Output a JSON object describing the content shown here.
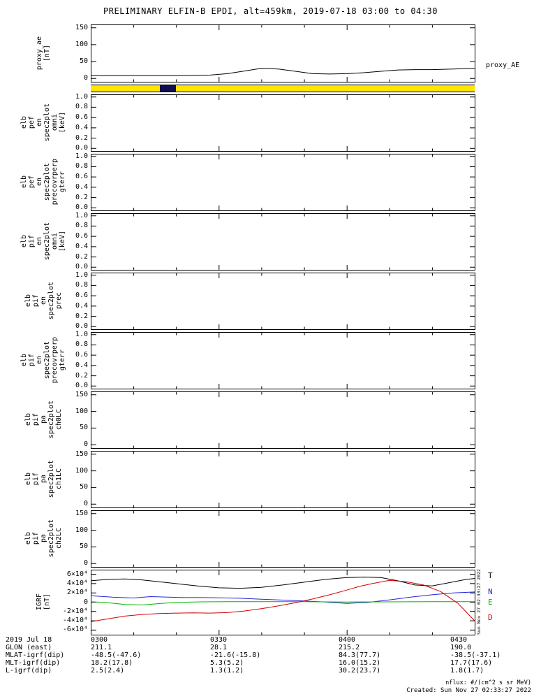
{
  "title": "PRELIMINARY ELFIN-B EPDI, alt=459km, 2019-07-18 03:00 to 04:30",
  "right_labels": {
    "proxy_ae": "proxy_AE"
  },
  "footer": {
    "nflux": "nflux: #/(cm^2 s sr MeV)",
    "created": "Created: Sun Nov 27 02:33:27 2022",
    "side_timestamp": "Sun Nov 27 02:33:27 2022"
  },
  "bottom_table": {
    "rows": [
      {
        "label": "2019 Jul 18",
        "values": [
          "0300",
          "0330",
          "0400",
          "0430"
        ]
      },
      {
        "label": "GLON (east)",
        "values": [
          "211.1",
          "28.1",
          "215.2",
          "190.0"
        ]
      },
      {
        "label": "MLAT-igrf(dip)",
        "values": [
          "-48.5(-47.6)",
          "-21.6(-15.8)",
          "84.3(77.7)",
          "-38.5(-37.1)"
        ]
      },
      {
        "label": "MLT-igrf(dip)",
        "values": [
          "18.2(17.8)",
          "5.3(5.2)",
          "16.0(15.2)",
          "17.7(17.6)"
        ]
      },
      {
        "label": "L-igrf(dip)",
        "values": [
          "2.5(2.4)",
          "1.3(1.2)",
          "30.2(23.7)",
          "1.8(1.7)"
        ]
      }
    ]
  },
  "chart_data": {
    "type": "line",
    "title": "PRELIMINARY ELFIN-B EPDI, alt=459km, 2019-07-18 03:00 to 04:30",
    "x_axis": {
      "start_time": "2019-07-18 03:00",
      "range_minutes": [
        0,
        90
      ],
      "tick_minutes": [
        0,
        30,
        60,
        90
      ],
      "minor_step_minutes": 10,
      "tick_labels": [
        "0300",
        "0330",
        "0400",
        "0430"
      ]
    },
    "status_bar": {
      "color": "#ffe600",
      "segment_color": "#10104e",
      "segment_start_frac": 0.18,
      "segment_end_frac": 0.222
    },
    "legend": [
      {
        "label": "T",
        "color": "#000000"
      },
      {
        "label": "N",
        "color": "#2424d8"
      },
      {
        "label": "E",
        "color": "#00b200"
      },
      {
        "label": "D",
        "color": "#d40000"
      }
    ],
    "panels": [
      {
        "id": "proxy_ae",
        "label_words": [
          "proxy_ae",
          "[nT]"
        ],
        "ylim": [
          -10,
          160
        ],
        "yticks": [
          {
            "v": 0,
            "label": "0"
          },
          {
            "v": 50,
            "label": "50"
          },
          {
            "v": 100,
            "label": "100"
          },
          {
            "v": 150,
            "label": "150"
          }
        ],
        "series": [
          {
            "name": "proxy_AE",
            "color": "#000000",
            "x": [
              0,
              5,
              10,
              15,
              20,
              25,
              28,
              32,
              36,
              40,
              44,
              48,
              52,
              56,
              60,
              64,
              68,
              72,
              76,
              80,
              85,
              90
            ],
            "y": [
              8,
              8,
              8,
              8,
              8,
              9,
              10,
              14,
              22,
              30,
              28,
              21,
              14,
              13,
              14,
              17,
              21,
              25,
              26,
              26,
              28,
              30
            ]
          }
        ]
      },
      {
        "id": "elb_pef_en_spec2plot_omni",
        "label_words": [
          "elb",
          "pef",
          "en",
          "spec2plot",
          "omni",
          "[keV]"
        ],
        "ylim": [
          -0.05,
          1.05
        ],
        "yticks": [
          {
            "v": 0,
            "label": "0.0"
          },
          {
            "v": 0.2,
            "label": "0.2"
          },
          {
            "v": 0.4,
            "label": "0.4"
          },
          {
            "v": 0.6,
            "label": "0.6"
          },
          {
            "v": 0.8,
            "label": "0.8"
          },
          {
            "v": 1,
            "label": "1.0"
          }
        ],
        "series": []
      },
      {
        "id": "elb_pef_en_spec2plot_precovrperp_gterr",
        "label_words": [
          "elb",
          "pef",
          "en",
          "spec2plot",
          "precovrperp",
          "gterr"
        ],
        "ylim": [
          -0.05,
          1.05
        ],
        "yticks": [
          {
            "v": 0,
            "label": "0.0"
          },
          {
            "v": 0.2,
            "label": "0.2"
          },
          {
            "v": 0.4,
            "label": "0.4"
          },
          {
            "v": 0.6,
            "label": "0.6"
          },
          {
            "v": 0.8,
            "label": "0.8"
          },
          {
            "v": 1,
            "label": "1.0"
          }
        ],
        "series": []
      },
      {
        "id": "elb_pif_en_spec2plot_omni",
        "label_words": [
          "elb",
          "pif",
          "en",
          "spec2plot",
          "omni",
          "[keV]"
        ],
        "ylim": [
          -0.05,
          1.05
        ],
        "yticks": [
          {
            "v": 0,
            "label": "0.0"
          },
          {
            "v": 0.2,
            "label": "0.2"
          },
          {
            "v": 0.4,
            "label": "0.4"
          },
          {
            "v": 0.6,
            "label": "0.6"
          },
          {
            "v": 0.8,
            "label": "0.8"
          },
          {
            "v": 1,
            "label": "1.0"
          }
        ],
        "series": []
      },
      {
        "id": "elb_pif_en_spec2plot_prec",
        "label_words": [
          "elb",
          "pif",
          "en",
          "spec2plot",
          "prec"
        ],
        "ylim": [
          -0.05,
          1.05
        ],
        "yticks": [
          {
            "v": 0,
            "label": "0.0"
          },
          {
            "v": 0.2,
            "label": "0.2"
          },
          {
            "v": 0.4,
            "label": "0.4"
          },
          {
            "v": 0.6,
            "label": "0.6"
          },
          {
            "v": 0.8,
            "label": "0.8"
          },
          {
            "v": 1,
            "label": "1.0"
          }
        ],
        "series": []
      },
      {
        "id": "elb_pif_en_spec2plot_precovrperp_gterr",
        "label_words": [
          "elb",
          "pif",
          "en",
          "spec2plot",
          "precovrperp",
          "gterr"
        ],
        "ylim": [
          -0.05,
          1.05
        ],
        "yticks": [
          {
            "v": 0,
            "label": "0.0"
          },
          {
            "v": 0.2,
            "label": "0.2"
          },
          {
            "v": 0.4,
            "label": "0.4"
          },
          {
            "v": 0.6,
            "label": "0.6"
          },
          {
            "v": 0.8,
            "label": "0.8"
          },
          {
            "v": 1,
            "label": "1.0"
          }
        ],
        "series": []
      },
      {
        "id": "elb_pif_pa_spec2plot_ch0LC",
        "label_words": [
          "elb",
          "pif",
          "pa",
          "spec2plot",
          "ch0LC"
        ],
        "ylim": [
          -10,
          160
        ],
        "yticks": [
          {
            "v": 0,
            "label": "0"
          },
          {
            "v": 50,
            "label": "50"
          },
          {
            "v": 100,
            "label": "100"
          },
          {
            "v": 150,
            "label": "150"
          }
        ],
        "series": []
      },
      {
        "id": "elb_pif_pa_spec2plot_ch1LC",
        "label_words": [
          "elb",
          "pif",
          "pa",
          "spec2plot",
          "ch1LC"
        ],
        "ylim": [
          -10,
          160
        ],
        "yticks": [
          {
            "v": 0,
            "label": "0"
          },
          {
            "v": 50,
            "label": "50"
          },
          {
            "v": 100,
            "label": "100"
          },
          {
            "v": 150,
            "label": "150"
          }
        ],
        "series": []
      },
      {
        "id": "elb_pif_pa_spec2plot_ch2LC",
        "label_words": [
          "elb",
          "pif",
          "pa",
          "spec2plot",
          "ch2LC"
        ],
        "ylim": [
          -10,
          160
        ],
        "yticks": [
          {
            "v": 0,
            "label": "0"
          },
          {
            "v": 50,
            "label": "50"
          },
          {
            "v": 100,
            "label": "100"
          },
          {
            "v": 150,
            "label": "150"
          }
        ],
        "series": []
      },
      {
        "id": "igrf",
        "label_words": [
          "IGRF",
          "[nT]"
        ],
        "ylim": [
          -70000,
          70000
        ],
        "yticks": [
          {
            "v": -60000,
            "label": "-6×10⁴"
          },
          {
            "v": -40000,
            "label": "-4×10⁴"
          },
          {
            "v": -20000,
            "label": "-2×10⁴"
          },
          {
            "v": 0,
            "label": "0"
          },
          {
            "v": 20000,
            "label": "2×10⁴"
          },
          {
            "v": 40000,
            "label": "4×10⁴"
          },
          {
            "v": 60000,
            "label": "6×10⁴"
          }
        ],
        "series": [
          {
            "name": "T",
            "color": "#000000",
            "x": [
              0,
              4,
              8,
              12,
              16,
              20,
              25,
              30,
              35,
              40,
              45,
              50,
              55,
              60,
              64,
              68,
              72,
              76,
              80,
              84,
              88,
              90
            ],
            "y": [
              46000,
              49000,
              50000,
              48000,
              44000,
              40000,
              35000,
              31000,
              30000,
              32000,
              37000,
              43000,
              49000,
              53000,
              54000,
              53000,
              46000,
              37000,
              35000,
              42000,
              49000,
              51000
            ]
          },
          {
            "name": "N",
            "color": "#2424d8",
            "x": [
              0,
              5,
              10,
              14,
              18,
              22,
              26,
              30,
              35,
              40,
              45,
              50,
              55,
              60,
              65,
              70,
              75,
              80,
              85,
              90
            ],
            "y": [
              14000,
              11000,
              9000,
              12000,
              11000,
              10000,
              10000,
              9500,
              8500,
              6500,
              4500,
              2500,
              500,
              -2500,
              -500,
              5000,
              11000,
              16000,
              20000,
              22000
            ]
          },
          {
            "name": "E",
            "color": "#00b200",
            "x": [
              0,
              4,
              8,
              12,
              16,
              20,
              26,
              32,
              40,
              50,
              60,
              70,
              80,
              90
            ],
            "y": [
              1000,
              -1000,
              -5000,
              -6000,
              -3000,
              -500,
              800,
              1200,
              1200,
              1000,
              500,
              800,
              1000,
              1200
            ]
          },
          {
            "name": "D",
            "color": "#d40000",
            "x": [
              0,
              4,
              8,
              12,
              16,
              20,
              24,
              28,
              32,
              36,
              40,
              44,
              48,
              52,
              56,
              60,
              63,
              66,
              70,
              74,
              78,
              82,
              86,
              90
            ],
            "y": [
              -42000,
              -36000,
              -30000,
              -26500,
              -24500,
              -23500,
              -23000,
              -23500,
              -22500,
              -19000,
              -14000,
              -8000,
              -1000,
              7000,
              16000,
              26000,
              34000,
              40000,
              47000,
              44000,
              37000,
              23000,
              -2000,
              -40000
            ]
          }
        ]
      }
    ]
  }
}
